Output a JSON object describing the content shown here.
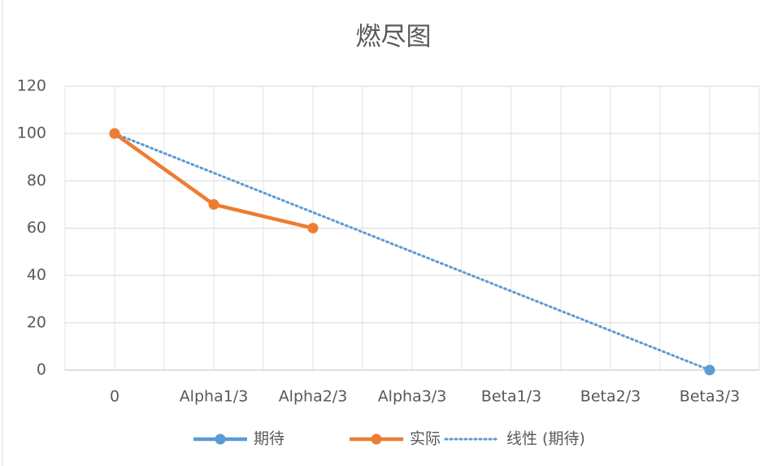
{
  "chart_data": {
    "type": "line",
    "title": "燃尽图",
    "categories": [
      "0",
      "Alpha1/3",
      "Alpha2/3",
      "Alpha3/3",
      "Beta1/3",
      "Beta2/3",
      "Beta3/3"
    ],
    "series": [
      {
        "name": "期待",
        "color": "#5b9bd5",
        "values": [
          100,
          null,
          null,
          null,
          null,
          null,
          0
        ]
      },
      {
        "name": "实际",
        "color": "#ed7d31",
        "values": [
          100,
          70,
          60,
          null,
          null,
          null,
          null
        ]
      }
    ],
    "trendline": {
      "name": "线性 (期待)",
      "color": "#5b9bd5",
      "series": 0,
      "style": "dotted"
    },
    "ylim": [
      0,
      120
    ],
    "yticks": [
      0,
      20,
      40,
      60,
      80,
      100,
      120
    ],
    "grid": true,
    "legend": "bottom"
  }
}
